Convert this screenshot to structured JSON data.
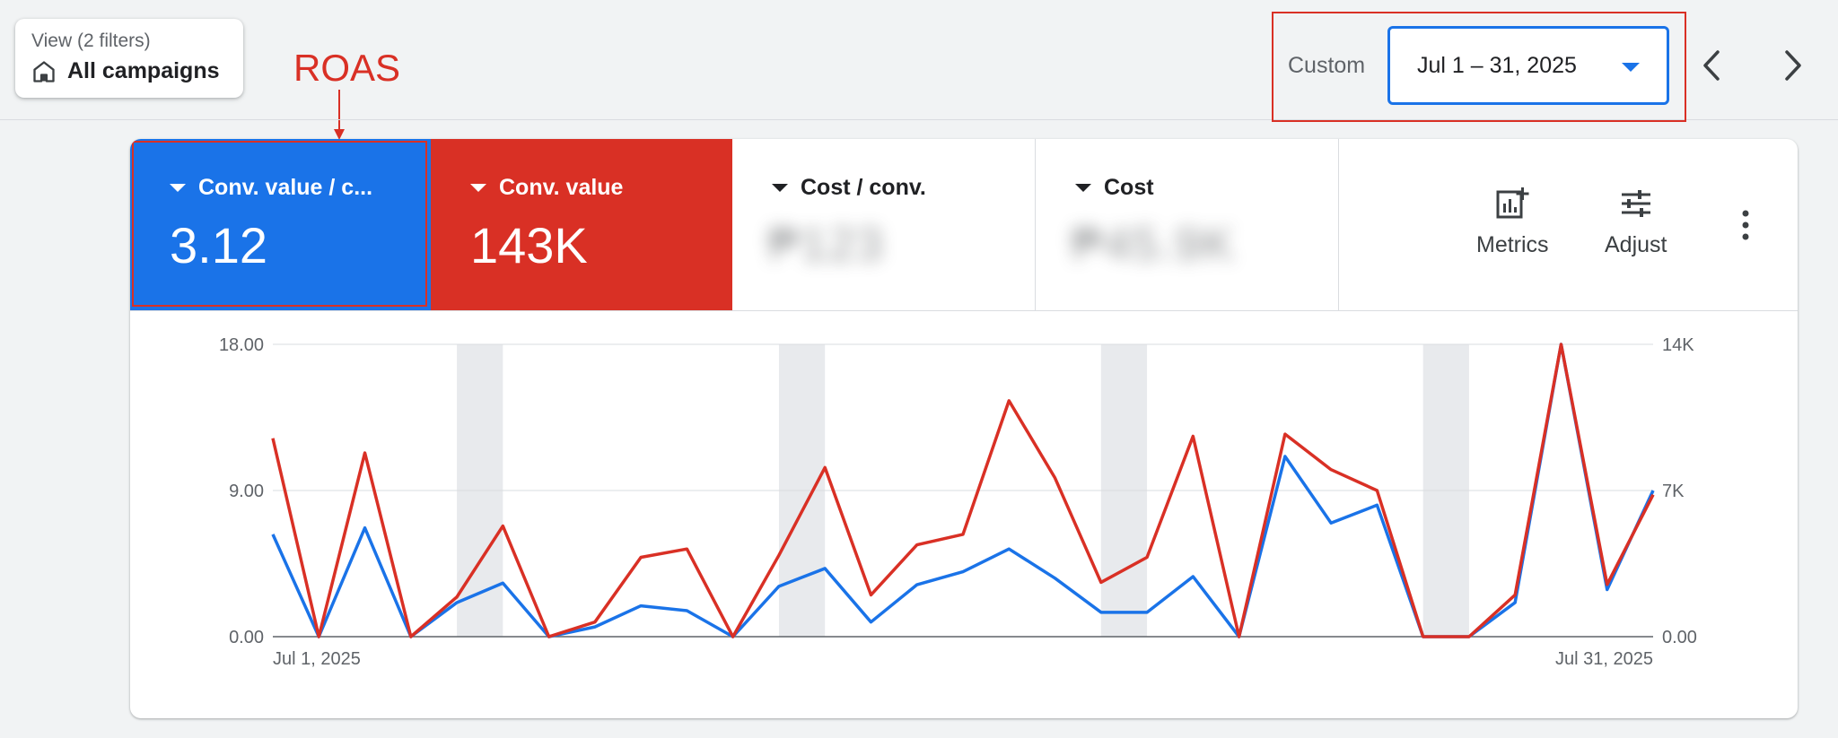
{
  "view": {
    "subtitle": "View (2 filters)",
    "title": "All campaigns",
    "icon": "home-icon"
  },
  "annotation": {
    "label": "ROAS",
    "color": "#d93025"
  },
  "date_range": {
    "label": "Custom",
    "value": "Jul 1 – 31, 2025",
    "icons": [
      "chevron-left-icon",
      "chevron-right-icon"
    ]
  },
  "tiles": [
    {
      "name": "Conv. value / c...",
      "value": "3.12",
      "color": "#1a73e8"
    },
    {
      "name": "Conv. value",
      "value": "143K",
      "color": "#d93025"
    },
    {
      "name": "Cost / conv.",
      "value": "₱123"
    },
    {
      "name": "Cost",
      "value": "₱45.9K"
    }
  ],
  "tools": {
    "metrics_label": "Metrics",
    "adjust_label": "Adjust"
  },
  "chart_data": {
    "type": "line",
    "x": [
      "Jul 1, 2025",
      "Jul 2, 2025",
      "Jul 3, 2025",
      "Jul 4, 2025",
      "Jul 5, 2025",
      "Jul 6, 2025",
      "Jul 7, 2025",
      "Jul 8, 2025",
      "Jul 9, 2025",
      "Jul 10, 2025",
      "Jul 11, 2025",
      "Jul 12, 2025",
      "Jul 13, 2025",
      "Jul 14, 2025",
      "Jul 15, 2025",
      "Jul 16, 2025",
      "Jul 17, 2025",
      "Jul 18, 2025",
      "Jul 19, 2025",
      "Jul 20, 2025",
      "Jul 21, 2025",
      "Jul 22, 2025",
      "Jul 23, 2025",
      "Jul 24, 2025",
      "Jul 25, 2025",
      "Jul 26, 2025",
      "Jul 27, 2025",
      "Jul 28, 2025",
      "Jul 29, 2025",
      "Jul 30, 2025",
      "Jul 31, 2025"
    ],
    "x_tick_labels": [
      "Jul 1, 2025",
      "Jul 31, 2025"
    ],
    "series": [
      {
        "name": "Conv. value / c...",
        "axis": "left",
        "color": "#1a73e8",
        "values": [
          6.3,
          0.0,
          6.7,
          0.0,
          2.1,
          3.3,
          0.0,
          0.6,
          1.9,
          1.6,
          0.0,
          3.1,
          4.2,
          0.9,
          3.2,
          4.0,
          5.4,
          3.6,
          1.5,
          1.5,
          3.7,
          0.0,
          11.1,
          7.0,
          8.1,
          0.0,
          0.0,
          2.1,
          18.0,
          2.9,
          9.0
        ]
      },
      {
        "name": "Conv. value",
        "axis": "right",
        "color": "#d93025",
        "values": [
          9500,
          0,
          8800,
          0,
          1900,
          5300,
          0,
          700,
          3800,
          4200,
          0,
          3900,
          8100,
          2000,
          4400,
          4900,
          11300,
          7600,
          2600,
          3800,
          9600,
          0,
          9700,
          8000,
          7000,
          0,
          0,
          2000,
          14000,
          2500,
          6800
        ]
      }
    ],
    "y_left": {
      "ticks": [
        "0.00",
        "9.00",
        "18.00"
      ],
      "lim": [
        0,
        18
      ]
    },
    "y_right": {
      "ticks": [
        "0.00",
        "7K",
        "14K"
      ],
      "lim": [
        0,
        14000
      ]
    },
    "weekend_bands": [
      [
        "Jul 5, 2025",
        "Jul 6, 2025"
      ],
      [
        "Jul 12, 2025",
        "Jul 13, 2025"
      ],
      [
        "Jul 19, 2025",
        "Jul 20, 2025"
      ],
      [
        "Jul 26, 2025",
        "Jul 27, 2025"
      ]
    ],
    "grid": true
  }
}
